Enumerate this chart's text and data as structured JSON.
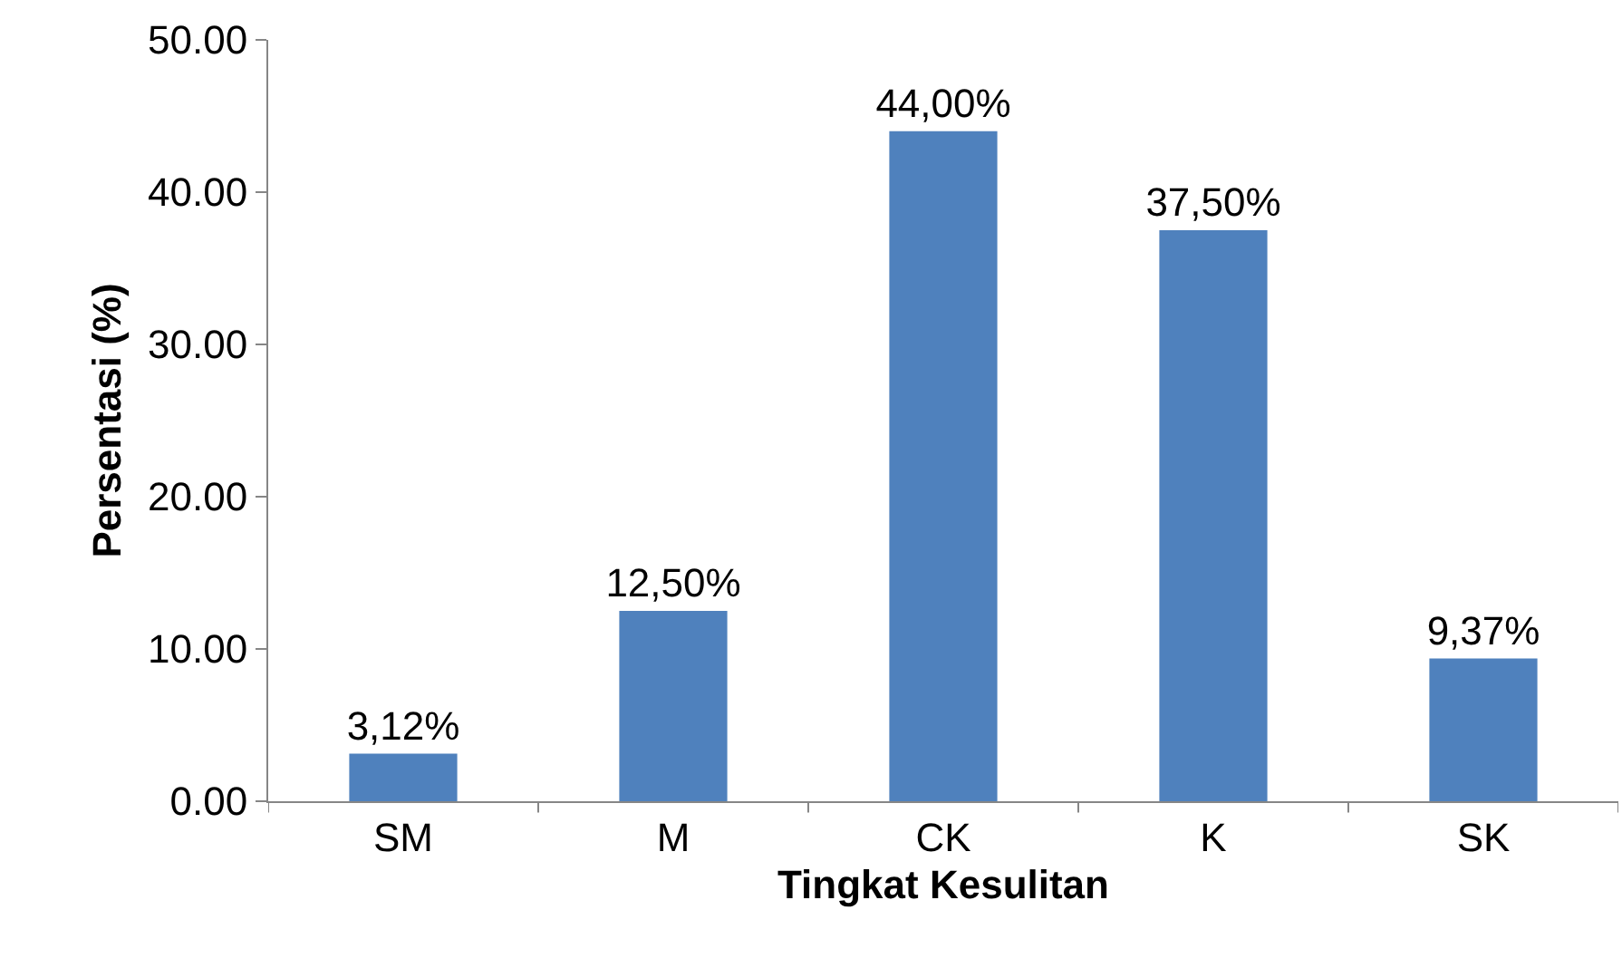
{
  "chart_data": {
    "type": "bar",
    "xlabel": "Tingkat Kesulitan",
    "ylabel": "Persentasi (%)",
    "categories": [
      "SM",
      "M",
      "CK",
      "K",
      "SK"
    ],
    "values": [
      3.12,
      12.5,
      44.0,
      37.5,
      9.37
    ],
    "value_labels": [
      "3,12%",
      "12,50%",
      "44,00%",
      "37,50%",
      "9,37%"
    ],
    "color": "#4f81bd",
    "ylim": [
      0,
      50
    ],
    "yticks": [
      {
        "value": 0,
        "label": "0.00"
      },
      {
        "value": 10,
        "label": "10.00"
      },
      {
        "value": 20,
        "label": "20.00"
      },
      {
        "value": 30,
        "label": "30.00"
      },
      {
        "value": 40,
        "label": "40.00"
      },
      {
        "value": 50,
        "label": "50.00"
      }
    ],
    "legend": false
  }
}
